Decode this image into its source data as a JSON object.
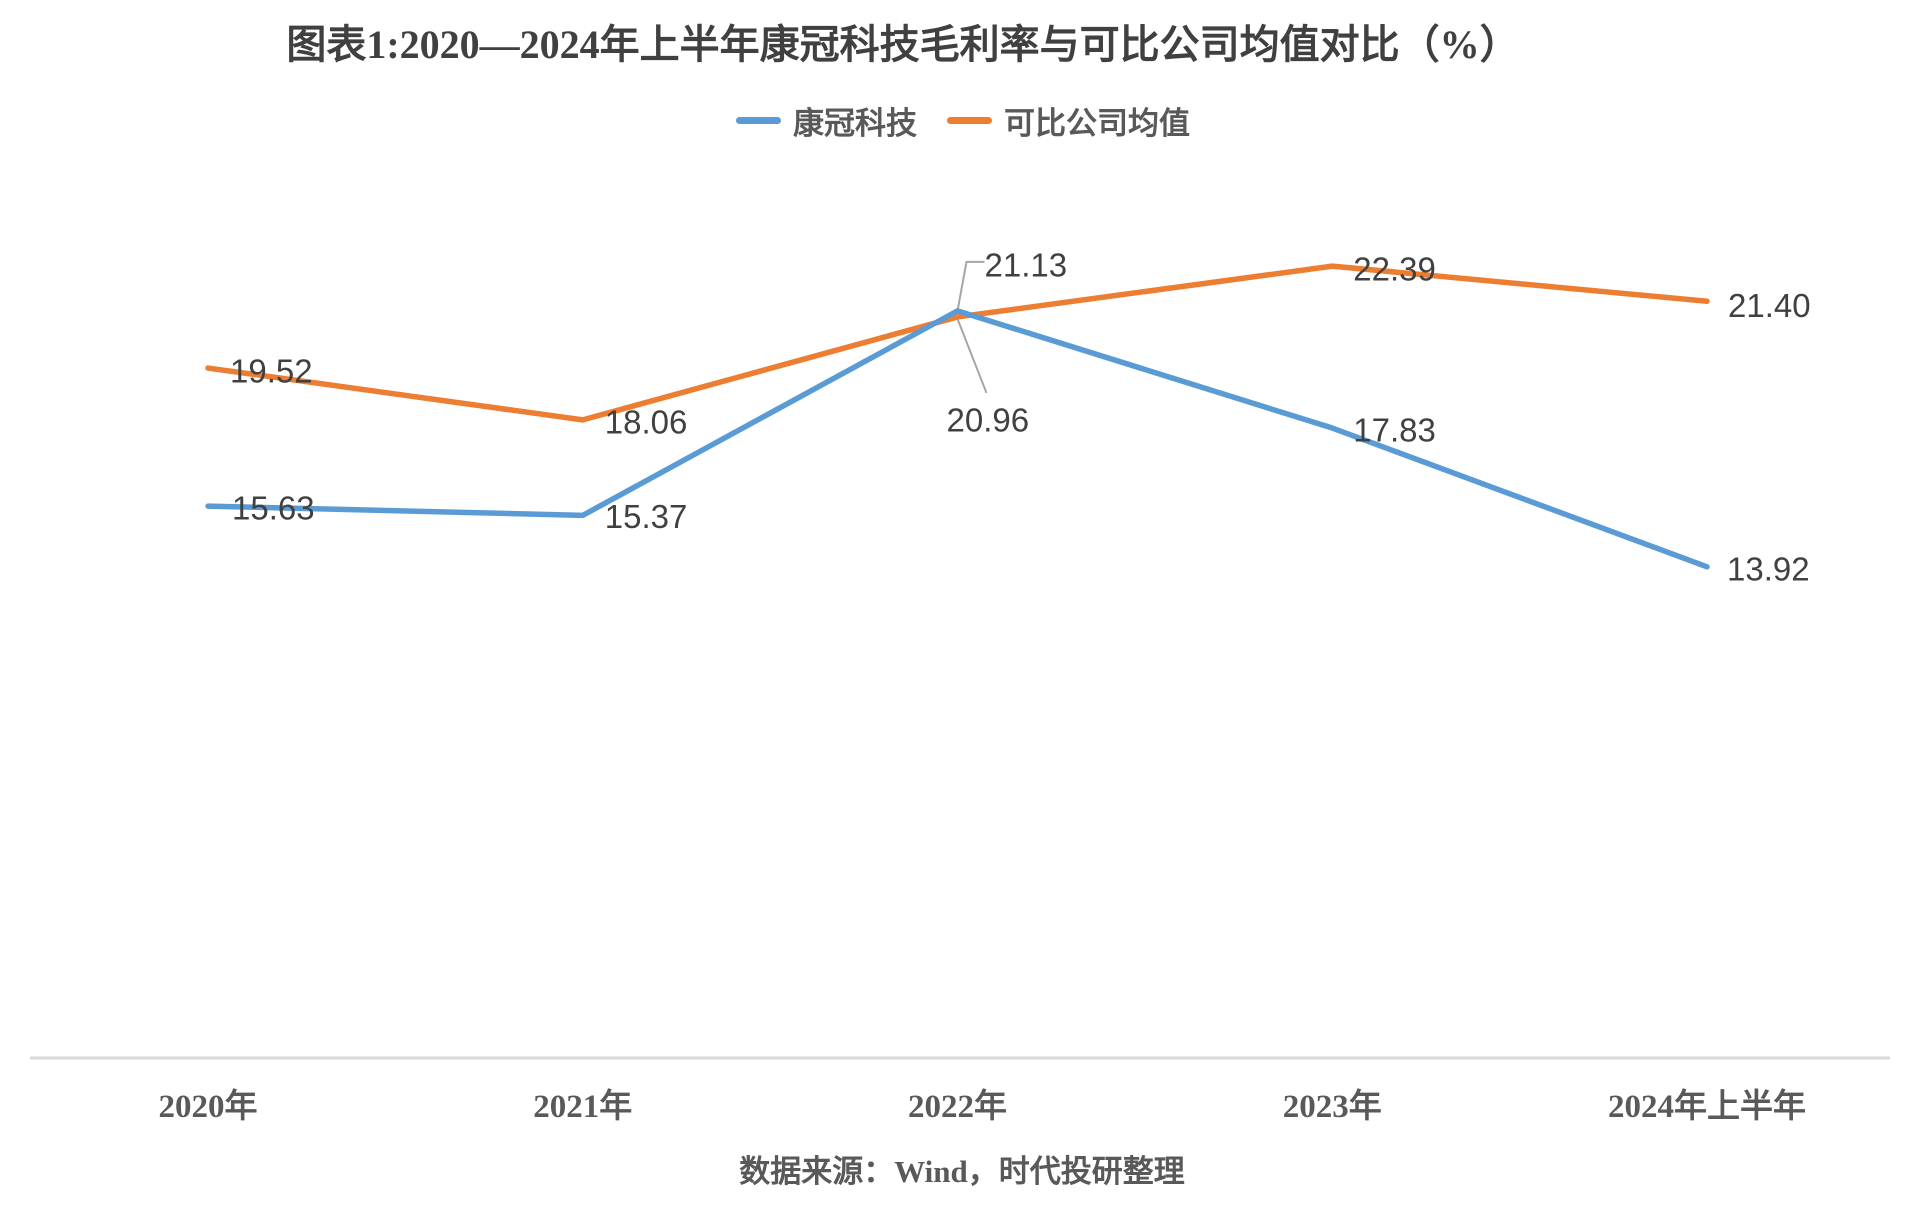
{
  "title": "图表1:2020—2024年上半年康冠科技毛利率与可比公司均值对比（%）",
  "source_note": "数据来源：Wind，时代投研整理",
  "colors": {
    "series_blue": "#5B9BD5",
    "series_orange": "#ED7D31",
    "data_label_text": "#404040",
    "axis_text": "#595959",
    "axis_line": "#D9D9D9",
    "leader_line": "#A6A6A6",
    "background": "#FFFFFF"
  },
  "chart_data": {
    "type": "line",
    "title": "图表1:2020—2024年上半年康冠科技毛利率与可比公司均值对比（%）",
    "categories": [
      "2020年",
      "2021年",
      "2022年",
      "2023年",
      "2024年上半年"
    ],
    "series": [
      {
        "name": "康冠科技",
        "color": "#5B9BD5",
        "values": [
          15.63,
          15.37,
          21.13,
          17.83,
          13.92
        ]
      },
      {
        "name": "可比公司均值",
        "color": "#ED7D31",
        "values": [
          19.52,
          18.06,
          20.96,
          22.39,
          21.4
        ]
      }
    ],
    "value_labels_shown": true,
    "value_label_format": "0.00",
    "legend_position": "top",
    "grid": "off",
    "y_axis_visible": false,
    "x_axis_line_visible": true,
    "ylim": [
      0,
      25.5
    ],
    "source": "数据来源：Wind，时代投研整理"
  }
}
